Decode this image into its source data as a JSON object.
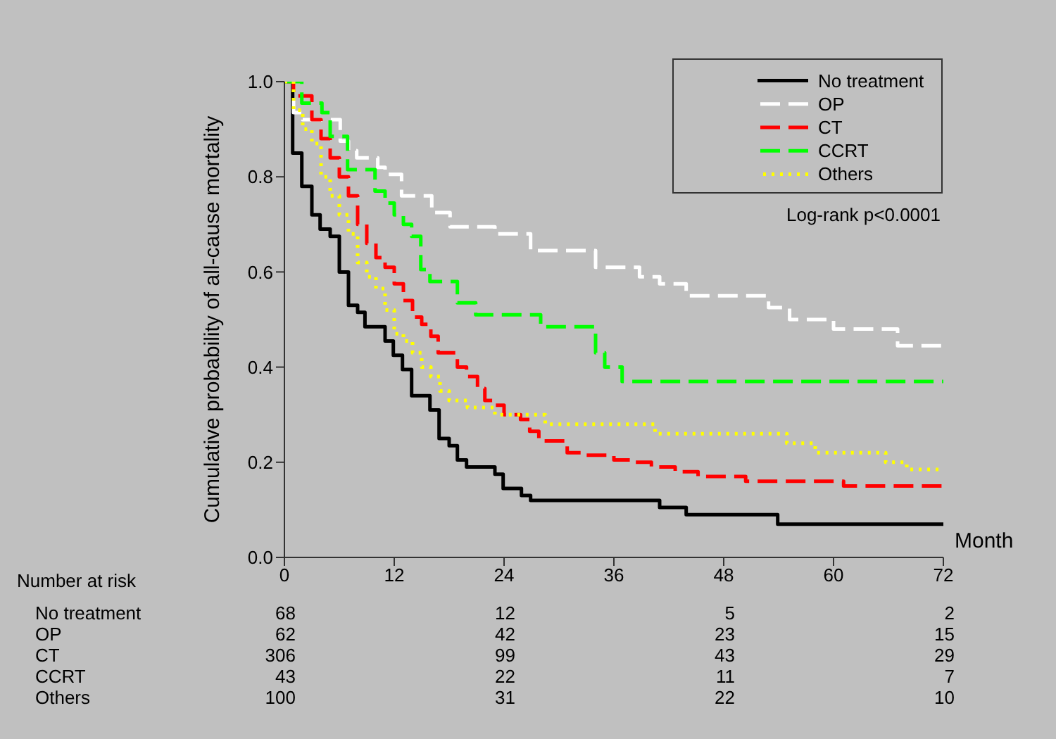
{
  "chart_data": {
    "type": "step",
    "ylabel": "Cumulative probability of all-cause mortality",
    "xlabel": "Month",
    "xlim": [
      0,
      72
    ],
    "xticks": [
      0,
      12,
      24,
      36,
      48,
      60,
      72
    ],
    "ylim": [
      0,
      1
    ],
    "yticks": [
      {
        "value": 0,
        "label": "0.0"
      },
      {
        "value": 0.2,
        "label": "0.2"
      },
      {
        "value": 0.4,
        "label": "0.4"
      },
      {
        "value": 0.6,
        "label": "0.6"
      },
      {
        "value": 0.8,
        "label": "0.8"
      },
      {
        "value": 1,
        "label": "1.0"
      }
    ],
    "legend": "top right",
    "marker": "none",
    "series": [
      {
        "name": "No treatment",
        "color": "#000000",
        "line_style": "solid",
        "x": [
          0,
          0.9,
          1.9,
          3,
          3.9,
          5,
          6,
          7,
          8,
          8.8,
          11,
          11.9,
          12.9,
          13.9,
          15.9,
          16.9,
          18,
          18.9,
          19.9,
          23,
          23.9,
          25.9,
          26.9,
          41,
          43.9,
          53.9,
          72
        ],
        "values": [
          1,
          0.85,
          0.78,
          0.72,
          0.69,
          0.675,
          0.6,
          0.53,
          0.515,
          0.485,
          0.455,
          0.425,
          0.395,
          0.34,
          0.31,
          0.25,
          0.235,
          0.205,
          0.19,
          0.175,
          0.145,
          0.13,
          0.12,
          0.105,
          0.09,
          0.07,
          0.07
        ]
      },
      {
        "name": "OP",
        "color": "#ffffff",
        "line_style": "dashed",
        "x": [
          0,
          1,
          2,
          6.1,
          7,
          7.9,
          10.2,
          11,
          12.8,
          16.1,
          18.1,
          23,
          26.9,
          34,
          38.8,
          41,
          43.9,
          52.9,
          55.2,
          60,
          67,
          72
        ],
        "values": [
          1,
          0.935,
          0.92,
          0.875,
          0.855,
          0.84,
          0.82,
          0.805,
          0.76,
          0.725,
          0.695,
          0.68,
          0.645,
          0.61,
          0.59,
          0.575,
          0.55,
          0.525,
          0.5,
          0.48,
          0.445,
          0.445
        ]
      },
      {
        "name": "CT",
        "color": "#ff0000",
        "line_style": "dashed",
        "x": [
          0,
          1,
          3,
          4,
          5,
          6,
          7,
          8,
          9,
          10,
          11,
          12,
          13,
          14,
          15,
          16,
          16.8,
          18.9,
          19.9,
          21.1,
          21.9,
          23,
          24,
          25.8,
          26.8,
          27.8,
          30.9,
          32.9,
          36,
          38,
          40.1,
          42.7,
          45.2,
          50.4,
          61.1,
          72
        ],
        "values": [
          1,
          0.97,
          0.92,
          0.88,
          0.84,
          0.8,
          0.76,
          0.7,
          0.66,
          0.63,
          0.61,
          0.575,
          0.54,
          0.505,
          0.49,
          0.465,
          0.43,
          0.4,
          0.38,
          0.355,
          0.33,
          0.32,
          0.3,
          0.29,
          0.265,
          0.245,
          0.22,
          0.215,
          0.205,
          0.2,
          0.19,
          0.18,
          0.17,
          0.16,
          0.15,
          0.15
        ]
      },
      {
        "name": "CCRT",
        "color": "#00ff00",
        "line_style": "dashed",
        "x": [
          0,
          1.9,
          4.1,
          5,
          6.9,
          9.9,
          11,
          12,
          13,
          13.9,
          14.9,
          15.9,
          18.9,
          20.9,
          28,
          34,
          35,
          36.9,
          72
        ],
        "values": [
          1,
          0.955,
          0.935,
          0.885,
          0.815,
          0.77,
          0.745,
          0.72,
          0.7,
          0.675,
          0.605,
          0.58,
          0.535,
          0.51,
          0.485,
          0.43,
          0.4,
          0.37,
          0.37
        ]
      },
      {
        "name": "Others",
        "color": "#ffff00",
        "line_style": "dotted",
        "x": [
          0,
          1,
          2,
          3,
          4,
          5,
          6,
          7,
          8,
          9,
          10,
          11,
          12,
          13,
          14,
          15,
          16,
          17,
          18,
          20,
          23,
          28.5,
          40.5,
          54.9,
          58,
          65.7,
          68,
          72
        ],
        "values": [
          1,
          0.94,
          0.9,
          0.87,
          0.8,
          0.76,
          0.72,
          0.68,
          0.62,
          0.59,
          0.565,
          0.52,
          0.47,
          0.455,
          0.43,
          0.4,
          0.38,
          0.35,
          0.33,
          0.315,
          0.3,
          0.28,
          0.26,
          0.24,
          0.22,
          0.2,
          0.185,
          0.185
        ]
      }
    ],
    "annotations": [
      "Log-rank p<0.0001",
      "Number at risk",
      "No treatment",
      "68",
      "12",
      "5",
      "2",
      "OP",
      "62",
      "42",
      "23",
      "15",
      "CT",
      "306",
      "99",
      "43",
      "29",
      "CCRT",
      "43",
      "22",
      "11",
      "7",
      "Others",
      "100",
      "31",
      "22",
      "10"
    ]
  }
}
